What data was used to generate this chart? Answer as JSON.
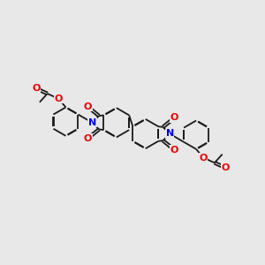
{
  "bg_color": "#e8e8e8",
  "bond_color": "#1a1a1a",
  "n_color": "#0000ee",
  "o_color": "#ee0000",
  "lw": 1.3,
  "dbl_off": 0.007,
  "figsize": [
    3.0,
    3.0
  ],
  "dpi": 100,
  "xlim": [
    0,
    10
  ],
  "ylim": [
    0,
    10
  ]
}
